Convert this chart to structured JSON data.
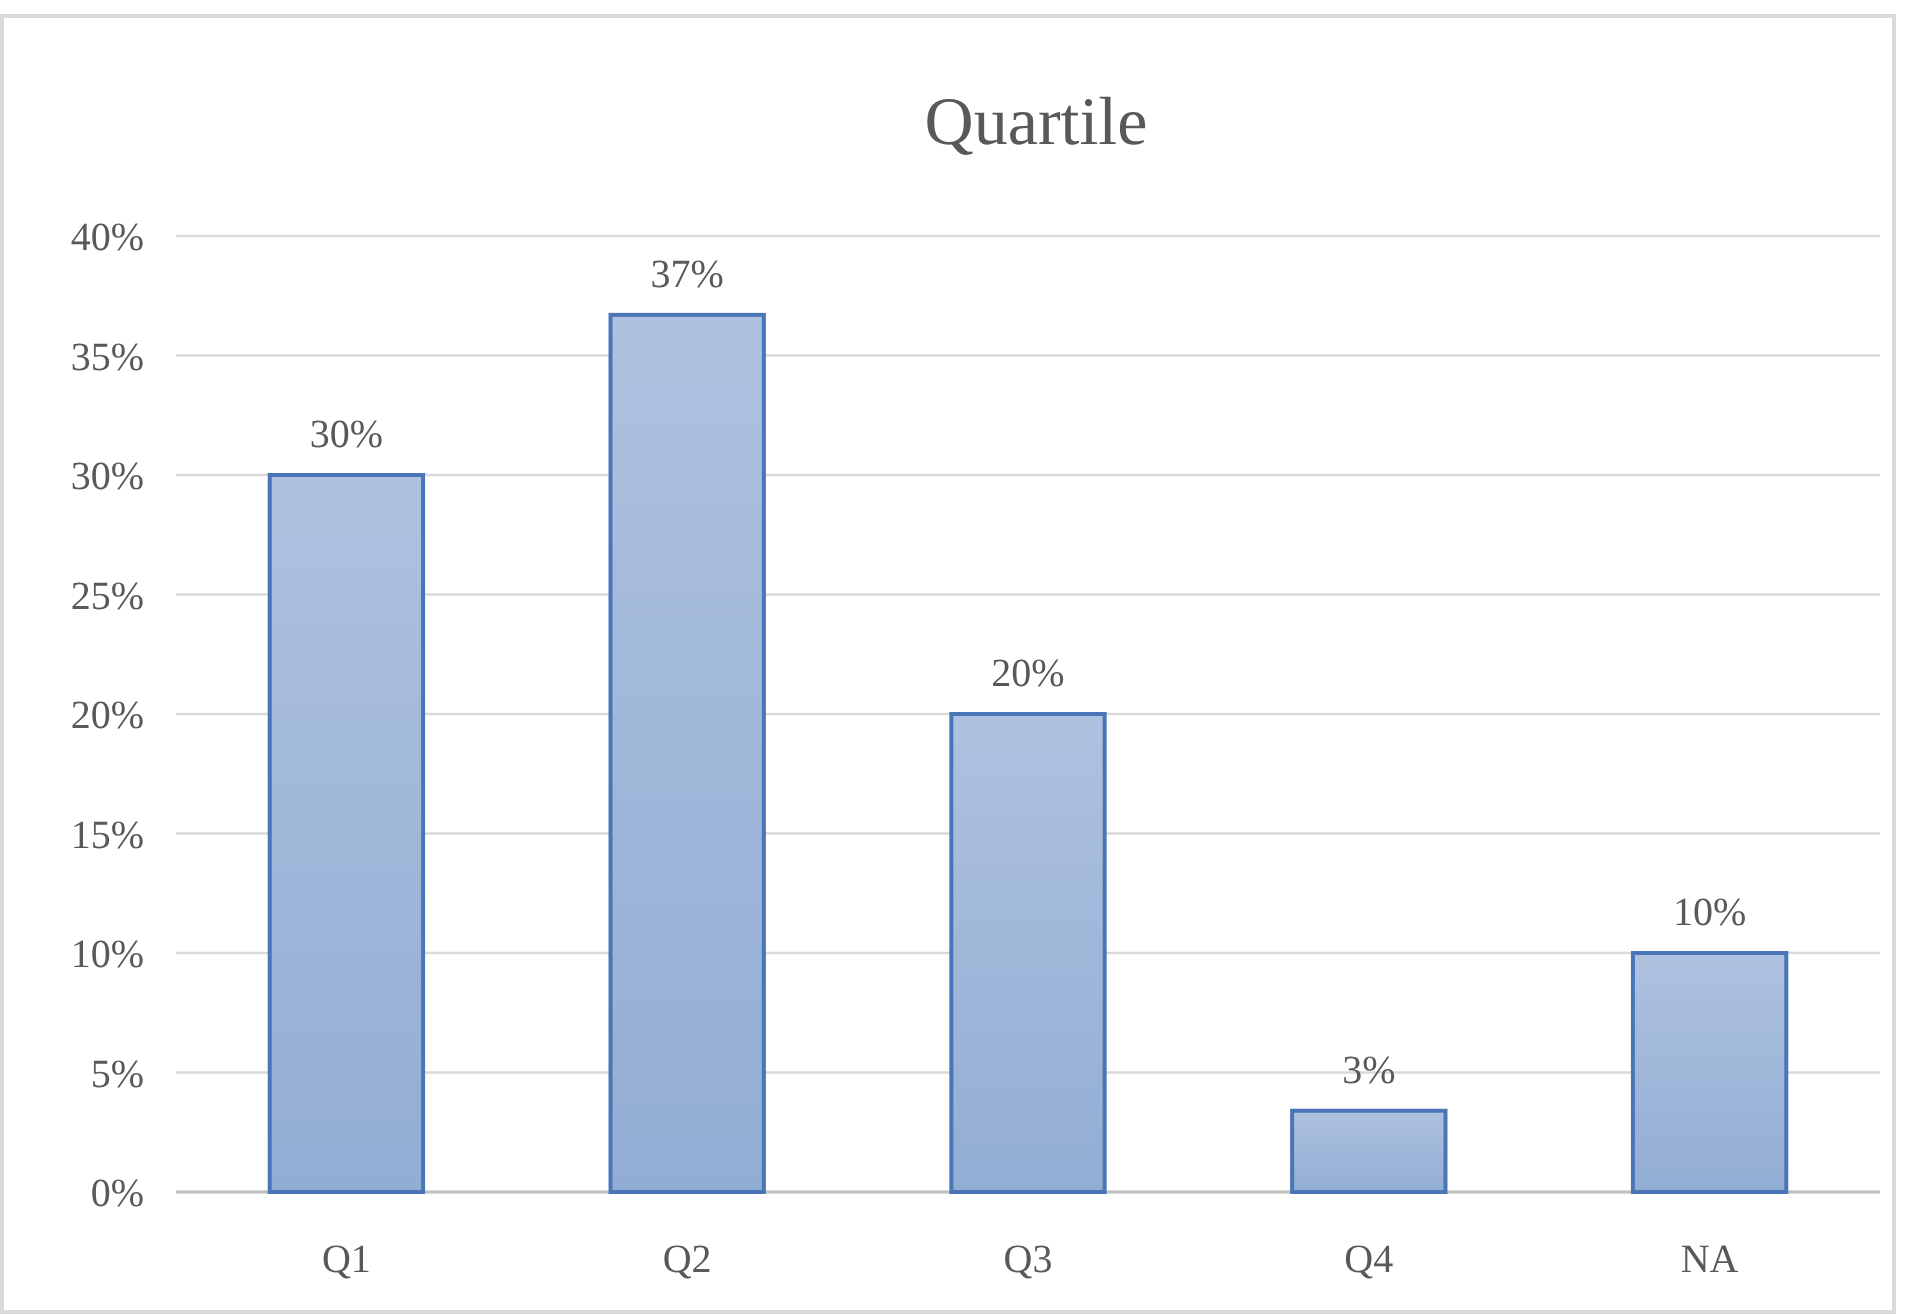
{
  "chart_data": {
    "type": "bar",
    "title": "Quartile",
    "categories": [
      "Q1",
      "Q2",
      "Q3",
      "Q4",
      "NA"
    ],
    "values": [
      30,
      36.7,
      20,
      3.4,
      10
    ],
    "value_labels": [
      "30%",
      "37%",
      "20%",
      "3%",
      "10%"
    ],
    "color": "#4a76b8",
    "ylim": [
      0,
      40
    ],
    "yticks": [
      {
        "value": 0,
        "label": "0%"
      },
      {
        "value": 5,
        "label": "5%"
      },
      {
        "value": 10,
        "label": "10%"
      },
      {
        "value": 15,
        "label": "15%"
      },
      {
        "value": 20,
        "label": "20%"
      },
      {
        "value": 25,
        "label": "25%"
      },
      {
        "value": 30,
        "label": "30%"
      },
      {
        "value": 35,
        "label": "35%"
      },
      {
        "value": 40,
        "label": "40%"
      }
    ],
    "grid": "y"
  }
}
